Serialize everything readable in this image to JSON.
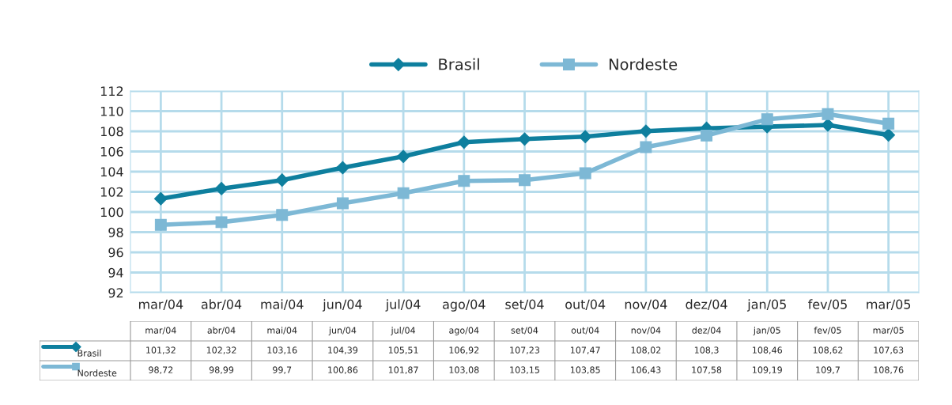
{
  "chart_data": {
    "type": "line",
    "categories": [
      "mar/04",
      "abr/04",
      "mai/04",
      "jun/04",
      "jul/04",
      "ago/04",
      "set/04",
      "out/04",
      "nov/04",
      "dez/04",
      "jan/05",
      "fev/05",
      "mar/05"
    ],
    "series": [
      {
        "name": "Brasil",
        "color": "#0e7f9e",
        "marker": "diamond",
        "values": [
          101.32,
          102.32,
          103.16,
          104.39,
          105.51,
          106.92,
          107.23,
          107.47,
          108.02,
          108.3,
          108.46,
          108.62,
          107.63
        ],
        "value_labels": [
          "101,32",
          "102,32",
          "103,16",
          "104,39",
          "105,51",
          "106,92",
          "107,23",
          "107,47",
          "108,02",
          "108,3",
          "108,46",
          "108,62",
          "107,63"
        ]
      },
      {
        "name": "Nordeste",
        "color": "#7db8d5",
        "marker": "square",
        "values": [
          98.72,
          98.99,
          99.7,
          100.86,
          101.87,
          103.08,
          103.15,
          103.85,
          106.43,
          107.58,
          109.19,
          109.7,
          108.76
        ],
        "value_labels": [
          "98,72",
          "98,99",
          "99,7",
          "100,86",
          "101,87",
          "103,08",
          "103,15",
          "103,85",
          "106,43",
          "107,58",
          "109,19",
          "109,7",
          "108,76"
        ]
      }
    ],
    "ylim": [
      92,
      112
    ],
    "yticks": [
      92,
      94,
      96,
      98,
      100,
      102,
      104,
      106,
      108,
      110,
      112
    ],
    "grid": true,
    "legend": "top",
    "line_style": "solid"
  }
}
